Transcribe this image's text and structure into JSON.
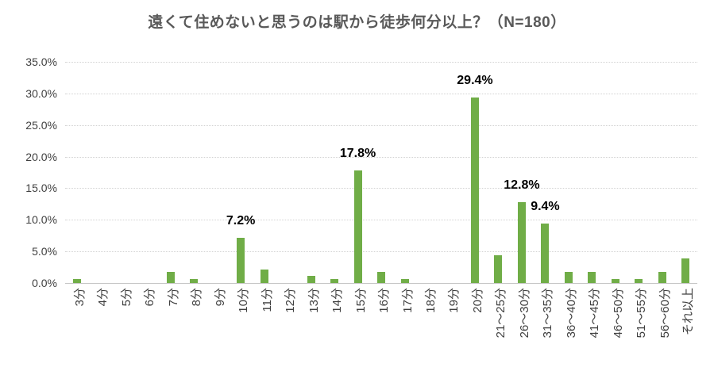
{
  "title": "遠くて住めないと思うのは駅から徒歩何分以上？（N=180）",
  "chart_data": {
    "type": "bar",
    "title": "遠くて住めないと思うのは駅から徒歩何分以上？（N=180）",
    "sample_size": 180,
    "categories": [
      "3分",
      "4分",
      "5分",
      "6分",
      "7分",
      "8分",
      "9分",
      "10分",
      "11分",
      "12分",
      "13分",
      "14分",
      "15分",
      "16分",
      "17分",
      "18分",
      "19分",
      "20分",
      "21～25分",
      "26～30分",
      "31～35分",
      "36～40分",
      "41～45分",
      "46～50分",
      "51～55分",
      "56～60分",
      "それ以上"
    ],
    "values": [
      0.6,
      0,
      0,
      0,
      1.7,
      0.6,
      0,
      7.2,
      2.2,
      0,
      1.1,
      0.6,
      17.8,
      1.7,
      0.6,
      0,
      0,
      29.4,
      4.4,
      12.8,
      9.4,
      1.7,
      1.7,
      0.6,
      0.6,
      1.7,
      3.9
    ],
    "data_labels": [
      "",
      "",
      "",
      "",
      "",
      "",
      "",
      "7.2%",
      "",
      "",
      "",
      "",
      "17.8%",
      "",
      "",
      "",
      "",
      "29.4%",
      "",
      "12.8%",
      "9.4%",
      "",
      "",
      "",
      "",
      "",
      ""
    ],
    "xlabel": "",
    "ylabel": "",
    "y_ticks": [
      "0.0%",
      "5.0%",
      "10.0%",
      "15.0%",
      "20.0%",
      "25.0%",
      "30.0%",
      "35.0%"
    ],
    "ylim": [
      0,
      35
    ],
    "y_tick_step": 5,
    "grid": "horizontal-dotted",
    "legend": "none",
    "bar_color": "#70AD47",
    "value_unit": "%"
  }
}
